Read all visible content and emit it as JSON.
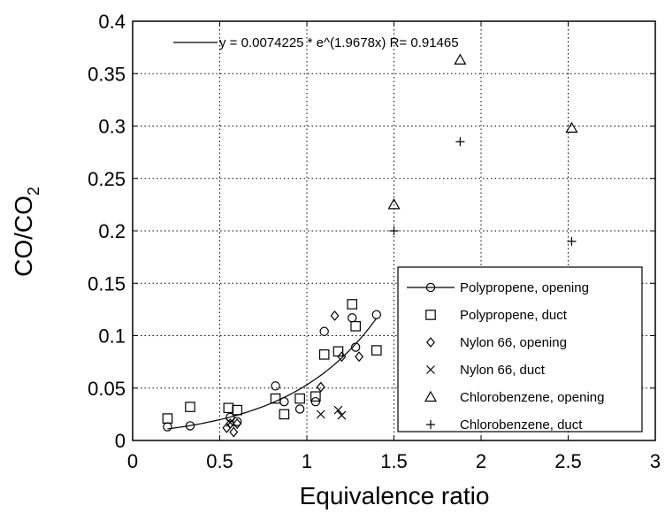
{
  "chart_data": {
    "type": "scatter",
    "title": "",
    "xlabel": "Equivalence ratio",
    "ylabel_main": "CO/CO",
    "ylabel_sub": "2",
    "xlim": [
      0,
      3
    ],
    "ylim": [
      0,
      0.4
    ],
    "x_ticks": [
      0,
      0.5,
      1,
      1.5,
      2,
      2.5,
      3
    ],
    "x_tick_labels": [
      "0",
      "0.5",
      "1",
      "1.5",
      "2",
      "2.5",
      "3"
    ],
    "y_ticks": [
      0,
      0.05,
      0.1,
      0.15,
      0.2,
      0.25,
      0.3,
      0.35,
      0.4
    ],
    "y_tick_labels": [
      "0",
      "0.05",
      "0.1",
      "0.15",
      "0.2",
      "0.25",
      "0.3",
      "0.35",
      "0.4"
    ],
    "grid": true,
    "legend_position": "bottom-right",
    "fit": {
      "label": "y = 0.0074225 * e^(1.9678x)   R= 0.91465",
      "a": 0.0074225,
      "b": 1.9678,
      "x_range": [
        0.2,
        1.4
      ]
    },
    "series": [
      {
        "name": "Polypropene, opening",
        "marker": "circle",
        "points": [
          [
            0.2,
            0.013
          ],
          [
            0.33,
            0.014
          ],
          [
            0.56,
            0.022
          ],
          [
            0.6,
            0.018
          ],
          [
            0.82,
            0.052
          ],
          [
            0.87,
            0.037
          ],
          [
            0.96,
            0.03
          ],
          [
            1.05,
            0.037
          ],
          [
            1.1,
            0.104
          ],
          [
            1.26,
            0.117
          ],
          [
            1.28,
            0.089
          ],
          [
            1.4,
            0.12
          ]
        ]
      },
      {
        "name": "Polypropene, duct",
        "marker": "square",
        "points": [
          [
            0.2,
            0.021
          ],
          [
            0.33,
            0.032
          ],
          [
            0.55,
            0.031
          ],
          [
            0.6,
            0.029
          ],
          [
            0.82,
            0.04
          ],
          [
            0.87,
            0.025
          ],
          [
            0.96,
            0.04
          ],
          [
            1.05,
            0.042
          ],
          [
            1.1,
            0.082
          ],
          [
            1.18,
            0.085
          ],
          [
            1.26,
            0.13
          ],
          [
            1.28,
            0.109
          ],
          [
            1.4,
            0.086
          ]
        ]
      },
      {
        "name": "Nylon 66, opening",
        "marker": "diamond",
        "points": [
          [
            0.54,
            0.012
          ],
          [
            0.56,
            0.016
          ],
          [
            0.58,
            0.008
          ],
          [
            0.6,
            0.016
          ],
          [
            1.08,
            0.051
          ],
          [
            1.16,
            0.119
          ],
          [
            1.2,
            0.08
          ],
          [
            1.3,
            0.08
          ]
        ]
      },
      {
        "name": "Nylon 66, duct",
        "marker": "x",
        "points": [
          [
            0.56,
            0.017
          ],
          [
            1.08,
            0.025
          ],
          [
            1.18,
            0.029
          ],
          [
            1.2,
            0.024
          ]
        ]
      },
      {
        "name": "Chlorobenzene, opening",
        "marker": "triangle",
        "points": [
          [
            1.5,
            0.225
          ],
          [
            1.88,
            0.363
          ],
          [
            2.52,
            0.298
          ]
        ]
      },
      {
        "name": "Chlorobenzene, duct",
        "marker": "plus",
        "points": [
          [
            1.5,
            0.2
          ],
          [
            1.88,
            0.285
          ],
          [
            2.52,
            0.19
          ]
        ]
      }
    ]
  }
}
